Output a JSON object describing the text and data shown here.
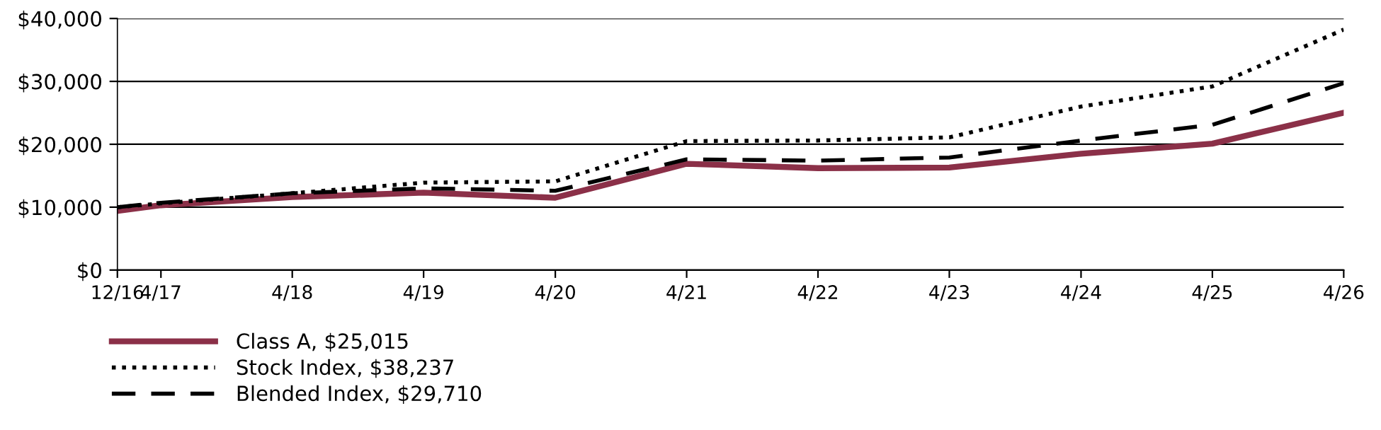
{
  "chart_data": {
    "type": "line",
    "x": [
      "2016-12",
      "2017-04",
      "2018-04",
      "2019-04",
      "2020-04",
      "2021-04",
      "2022-04",
      "2023-04",
      "2024-04",
      "2025-04",
      "2026-04"
    ],
    "series": [
      {
        "name": "Class A, $25,015",
        "color": "#8b3048",
        "line_style": "solid",
        "values": [
          9400,
          10300,
          11600,
          12300,
          11500,
          16900,
          16200,
          16300,
          18500,
          20100,
          25015
        ]
      },
      {
        "name": "Stock Index, $38,237",
        "color": "#000000",
        "line_style": "dotted",
        "values": [
          10000,
          10600,
          12200,
          13900,
          14100,
          20500,
          20600,
          21100,
          26000,
          29200,
          38237
        ]
      },
      {
        "name": "Blended Index, $29,710",
        "color": "#000000",
        "line_style": "dashed",
        "values": [
          10000,
          10700,
          12200,
          13000,
          12600,
          17600,
          17400,
          17900,
          20600,
          23100,
          29710
        ]
      }
    ],
    "xlim": [
      "2016-12",
      "2026-04"
    ],
    "xticks": [
      {
        "value": "2016-12",
        "label": "12/16"
      },
      {
        "value": "2017-04",
        "label": "4/17"
      },
      {
        "value": "2018-04",
        "label": "4/18"
      },
      {
        "value": "2019-04",
        "label": "4/19"
      },
      {
        "value": "2020-04",
        "label": "4/20"
      },
      {
        "value": "2021-04",
        "label": "4/21"
      },
      {
        "value": "2022-04",
        "label": "4/22"
      },
      {
        "value": "2023-04",
        "label": "4/23"
      },
      {
        "value": "2024-04",
        "label": "4/24"
      },
      {
        "value": "2025-04",
        "label": "4/25"
      },
      {
        "value": "2026-04",
        "label": "4/26"
      }
    ],
    "ylim": [
      0,
      40000
    ],
    "yticks": [
      {
        "value": 0,
        "label": "$0"
      },
      {
        "value": 10000,
        "label": "$10,000"
      },
      {
        "value": 20000,
        "label": "$20,000"
      },
      {
        "value": 30000,
        "label": "$30,000"
      },
      {
        "value": 40000,
        "label": "$40,000"
      }
    ],
    "grid": "y",
    "legend": "bottom",
    "marker": "none"
  }
}
